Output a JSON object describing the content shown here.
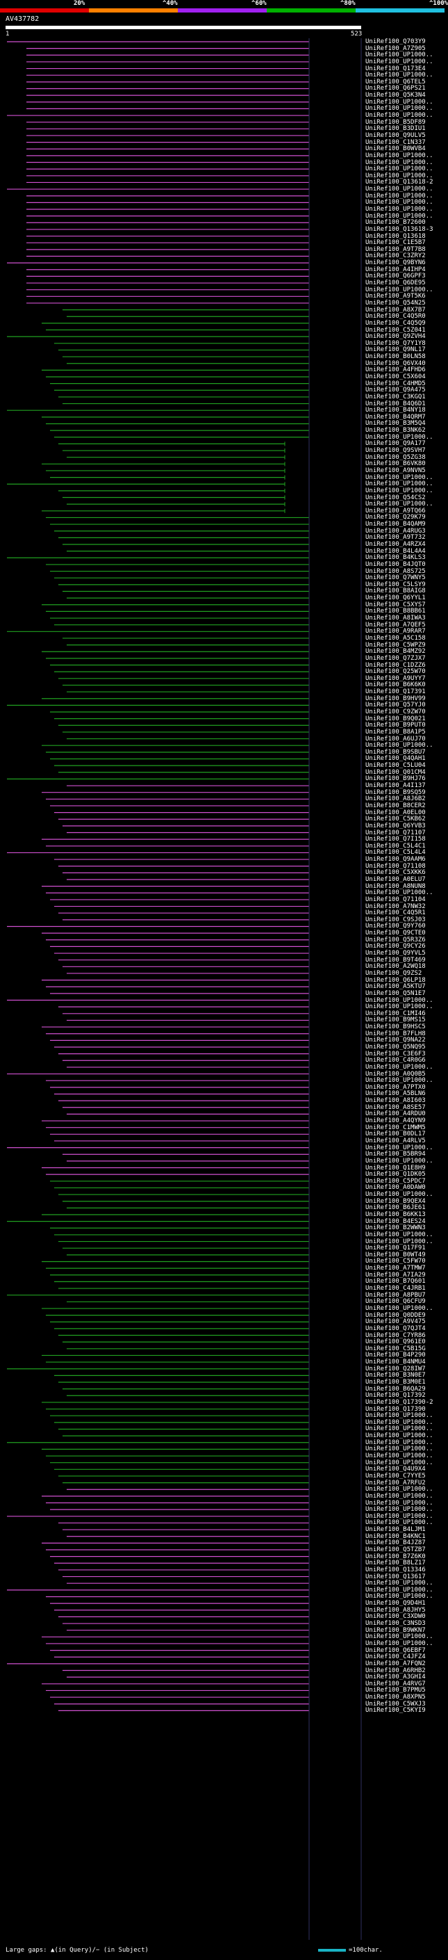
{
  "scale": {
    "labels": [
      "20%",
      "^40%",
      "^60%",
      "^80%",
      "^100%"
    ],
    "colors": [
      "#e00000",
      "#ff8000",
      "#a020f0",
      "#00b000",
      "#20c0e0"
    ]
  },
  "query": {
    "id": "AV437782",
    "start": "1",
    "end": "523"
  },
  "footer": {
    "gaps_label": "Large gaps: ▲(in Query)/− (in Subject)",
    "scale_label": "=100char."
  },
  "hits": [
    "UniRef100_Q703Y9",
    "UniRef100_A7Z905",
    "UniRef100_UP1000..",
    "UniRef100_UP1000..",
    "UniRef100_Q173E4",
    "UniRef100_UP1000..",
    "UniRef100_Q6TEL5",
    "UniRef100_Q6PS21",
    "UniRef100_Q5K3N4",
    "UniRef100_UP1000..",
    "UniRef100_UP1000..",
    "UniRef100_UP1000..",
    "UniRef100_B5DF89",
    "UniRef100_B3DIU1",
    "UniRef100_Q9ULV5",
    "UniRef100_C1N337",
    "UniRef100_B0WVB4",
    "UniRef100_UP1000..",
    "UniRef100_UP1000..",
    "UniRef100_UP1000..",
    "UniRef100_UP1000..",
    "UniRef100_Q13618-2",
    "UniRef100_UP1000..",
    "UniRef100_UP1000..",
    "UniRef100_UP1000..",
    "UniRef100_UP1000..",
    "UniRef100_UP1000..",
    "UniRef100_B72600",
    "UniRef100_Q13618-3",
    "UniRef100_Q13618",
    "UniRef100_C1E5B7",
    "UniRef100_A9T7B8",
    "UniRef100_C3ZRY2",
    "UniRef100_Q9BYN6",
    "UniRef100_A4IHP4",
    "UniRef100_Q6GPF3",
    "UniRef100_Q6DE95",
    "UniRef100_UP1000..",
    "UniRef100_A9T5K6",
    "UniRef100_Q54N25",
    "UniRef100_A8X7B7",
    "UniRef100_C4Q5R0",
    "UniRef100_C4Q5Q9",
    "UniRef100_C5Z041",
    "UniRef100_Q9ZVH4",
    "UniRef100_Q7Y1Y8",
    "UniRef100_Q9NL17",
    "UniRef100_B0LN58",
    "UniRef100_Q6VX40",
    "UniRef100_A4FHD6",
    "UniRef100_C5X604",
    "UniRef100_C4HMD5",
    "UniRef100_Q9A475",
    "UniRef100_C3KGQ1",
    "UniRef100_B4Q6D1",
    "UniRef100_B4NY18",
    "UniRef100_B4QRM7",
    "UniRef100_B3M5Q4",
    "UniRef100_B3NK62",
    "UniRef100_UP1000..",
    "UniRef100_Q9A177",
    "UniRef100_Q9SVH7",
    "UniRef100_Q5ZG38",
    "UniRef100_B6VK80",
    "UniRef100_A9NVN5",
    "UniRef100_UP1000..",
    "UniRef100_UP1000..",
    "UniRef100_UP1000..",
    "UniRef100_Q54CS2",
    "UniRef100_UP1000..",
    "UniRef100_A9TQ66",
    "UniRef100_Q29K79",
    "UniRef100_B4QAM9",
    "UniRef100_A4RUG3",
    "UniRef100_A9T732",
    "UniRef100_A4RZX4",
    "UniRef100_B4L4A4",
    "UniRef100_B4KLS3",
    "UniRef100_B4JQT0",
    "UniRef100_A8S725",
    "UniRef100_Q7WNY5",
    "UniRef100_C5LSY9",
    "UniRef100_B8AIG8",
    "UniRef100_Q6YYL1",
    "UniRef100_C5XYS7",
    "UniRef100_B8BB61",
    "UniRef100_A8IWA3",
    "UniRef100_A7QEF5",
    "UniRef100_A9RAR7",
    "UniRef100_A5C158",
    "UniRef100_C5WPZ9",
    "UniRef100_B4MZ92",
    "UniRef100_Q7ZJX7",
    "UniRef100_C1DZZ6",
    "UniRef100_Q25W70",
    "UniRef100_A9UYY7",
    "UniRef100_B6K6K0",
    "UniRef100_Q17391",
    "UniRef100_B9HV99",
    "UniRef100_Q57YJ0",
    "UniRef100_C9ZW70",
    "UniRef100_B9Q021",
    "UniRef100_B9PUT0",
    "UniRef100_B8A1P5",
    "UniRef100_A6UJ70",
    "UniRef100_UP1000..",
    "UniRef100_B9SBU7",
    "UniRef100_Q4QAH1",
    "UniRef100_C5LU04",
    "UniRef100_Q01CM4",
    "UniRef100_B9HJ76",
    "UniRef100_A4I137",
    "UniRef100_B9SQ59",
    "UniRef100_A8J6B2",
    "UniRef100_B8CER2",
    "UniRef100_A0EL00",
    "UniRef100_C5KB62",
    "UniRef100_Q6YVB3",
    "UniRef100_Q71107",
    "UniRef100_Q7I158",
    "UniRef100_C5L4C1",
    "UniRef100_C5L4L4",
    "UniRef100_Q9AAM6",
    "UniRef100_Q71108",
    "UniRef100_C5XKK6",
    "UniRef100_A0ELU7",
    "UniRef100_A8NUN8",
    "UniRef100_UP1000..",
    "UniRef100_Q71104",
    "UniRef100_A7NW32",
    "UniRef100_C4Q5R1",
    "UniRef100_C9SJ03",
    "UniRef100_Q9Y760",
    "UniRef100_Q9CTE0",
    "UniRef100_Q5R3Z6",
    "UniRef100_Q9CY26",
    "UniRef100_Q9YVL5",
    "UniRef100_B9T469",
    "UniRef100_A2WQ18",
    "UniRef100_Q9ZS2",
    "UniRef100_Q6LP18",
    "UniRef100_A5KTU7",
    "UniRef100_Q5N1E7",
    "UniRef100_UP1000..",
    "UniRef100_UP1000..",
    "UniRef100_C1MI46",
    "UniRef100_B9MS15",
    "UniRef100_B9HSC5",
    "UniRef100_B7FLH8",
    "UniRef100_Q9NA22",
    "UniRef100_Q5NQ95",
    "UniRef100_C3E6F3",
    "UniRef100_C4R0G6",
    "UniRef100_UP1000..",
    "UniRef100_A0Q0B5",
    "UniRef100_UP1000..",
    "UniRef100_A7PTX0",
    "UniRef100_A5BLN6",
    "UniRef100_A8I603",
    "UniRef100_A8SE57",
    "UniRef100_A4RDU0",
    "UniRef100_A4QYN9",
    "UniRef100_C1MWM5",
    "UniRef100_B0DL17",
    "UniRef100_A4RLV5",
    "UniRef100_UP1000..",
    "UniRef100_B5BR94",
    "UniRef100_UP1000..",
    "UniRef100_Q1E8H9",
    "UniRef100_Q1DK05",
    "UniRef100_C5PDC7",
    "UniRef100_A0DAW0",
    "UniRef100_UP1000..",
    "UniRef100_B9QEX4",
    "UniRef100_B6JE61",
    "UniRef100_B6KK13",
    "UniRef100_B4ES24",
    "UniRef100_B2WWN3",
    "UniRef100_UP1000..",
    "UniRef100_UP1000..",
    "UniRef100_Q17F91",
    "UniRef100_B0WT49",
    "UniRef100_C5FW70",
    "UniRef100_A7TMW7",
    "UniRef100_A7IA29",
    "UniRef100_B7Q601",
    "UniRef100_C4JRB1",
    "UniRef100_A8PBU7",
    "UniRef100_Q6CFU9",
    "UniRef100_UP1000..",
    "UniRef100_Q0DDE9",
    "UniRef100_A9V475",
    "UniRef100_Q7QJT4",
    "UniRef100_C7YR86",
    "UniRef100_Q961E0",
    "UniRef100_C5B15G",
    "UniRef100_B4P290",
    "UniRef100_B4NMU4",
    "UniRef100_Q28IW7",
    "UniRef100_B3N0E7",
    "UniRef100_B3M0E1",
    "UniRef100_B6QA29",
    "UniRef100_Q17392",
    "UniRef100_Q17390-2",
    "UniRef100_Q17390",
    "UniRef100_UP1000..",
    "UniRef100_UP1000..",
    "UniRef100_UP1000..",
    "UniRef100_UP1000..",
    "UniRef100_UP1000..",
    "UniRef100_UP1000..",
    "UniRef100_UP1000..",
    "UniRef100_UP1000..",
    "UniRef100_Q4U9X4",
    "UniRef100_C7YYE5",
    "UniRef100_A7RFU2",
    "UniRef100_UP1000..",
    "UniRef100_UP1000..",
    "UniRef100_UP1000..",
    "UniRef100_UP1000..",
    "UniRef100_UP1000..",
    "UniRef100_UP1000..",
    "UniRef100_B4LJM1",
    "UniRef100_B4KNC1",
    "UniRef100_B4JZ87",
    "UniRef100_Q5TZB7",
    "UniRef100_B7Z6K0",
    "UniRef100_B8LZ17",
    "UniRef100_Q13346",
    "UniRef100_Q13617",
    "UniRef100_UP1000..",
    "UniRef100_UP1000..",
    "UniRef100_UP1000..",
    "UniRef100_Q9D4H1",
    "UniRef100_A8JHY5",
    "UniRef100_C3XDW0",
    "UniRef100_C3NSD3",
    "UniRef100_B9WKN7",
    "UniRef100_UP1000..",
    "UniRef100_UP1000..",
    "UniRef100_Q6EBF7",
    "UniRef100_C4JFZ4",
    "UniRef100_A7FQN2",
    "UniRef100_A6RHB2",
    "UniRef100_A3GHI4",
    "UniRef100_A4RVG7",
    "UniRef100_B7PMU5",
    "UniRef100_A8XPN5",
    "UniRef100_C5WXJ3",
    "UniRef100_C5KYI9"
  ]
}
